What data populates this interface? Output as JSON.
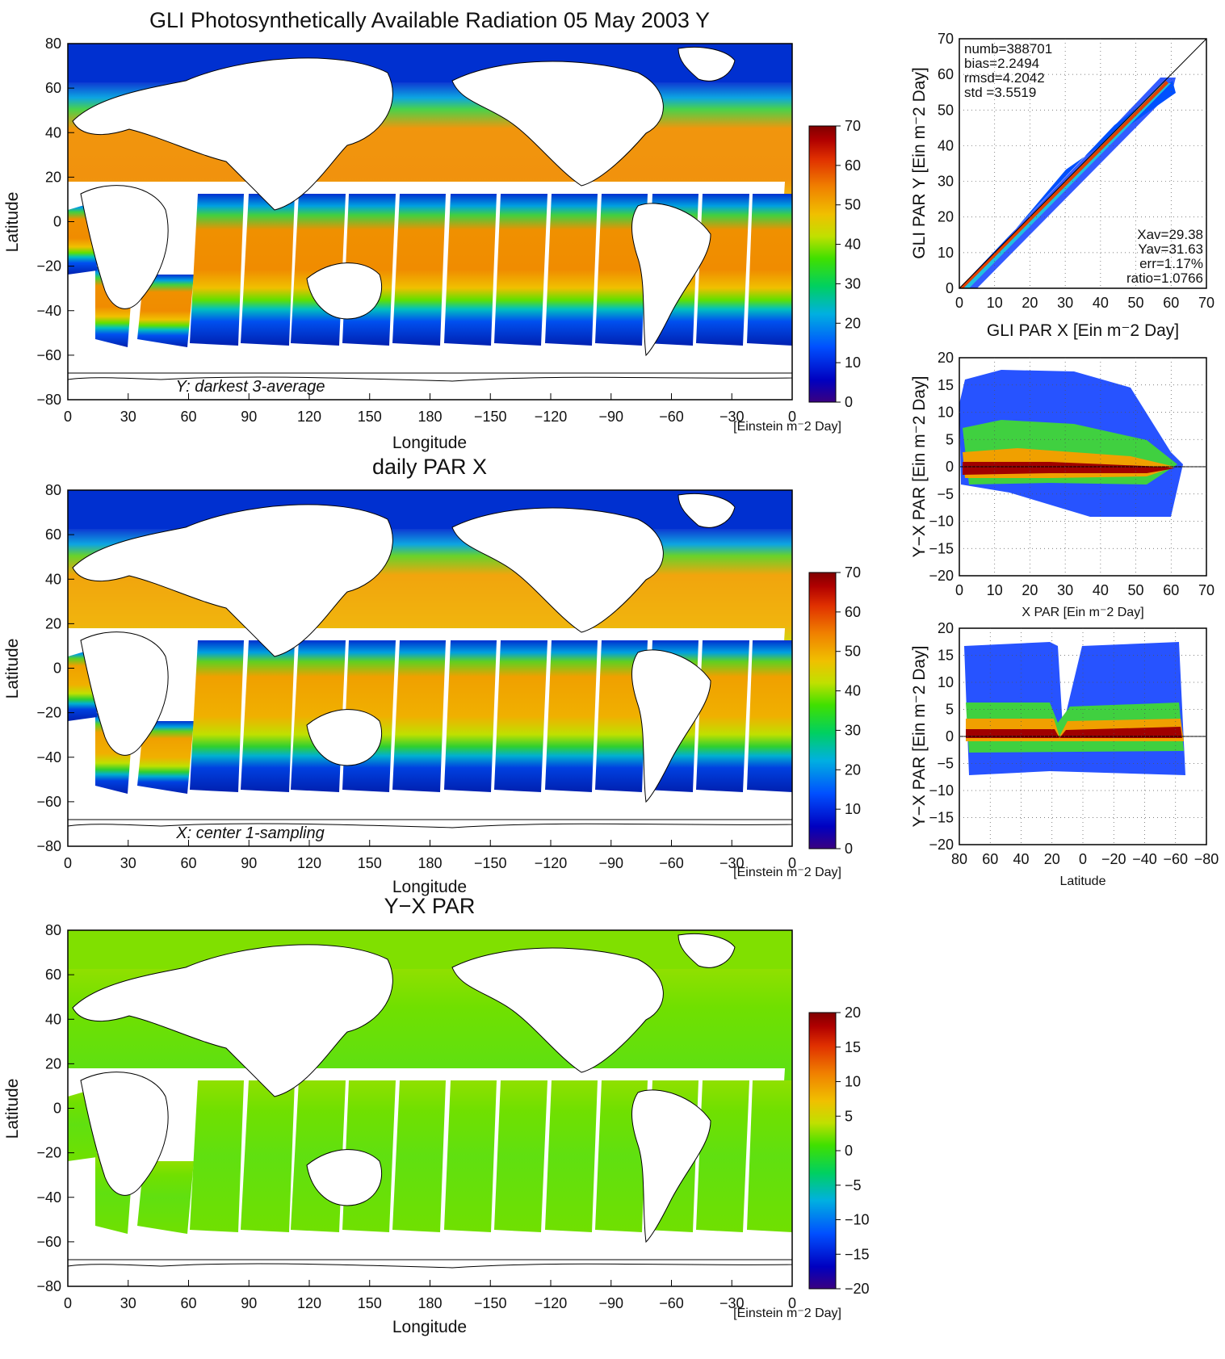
{
  "colors": {
    "par_scale": [
      "#3a0080",
      "#0000c0",
      "#0050ff",
      "#00b0e0",
      "#00d060",
      "#40e000",
      "#c0e000",
      "#f0c000",
      "#f08000",
      "#e03000",
      "#b00000",
      "#800000"
    ],
    "land": "#ffffff",
    "coast": "#000000"
  },
  "chart_data": [
    {
      "type": "heatmap",
      "title": "GLI Photosynthetically Available Radiation 05 May 2003 Y",
      "xlabel": "Longitude",
      "ylabel": "Latitude",
      "xticks": [
        "0",
        "30",
        "60",
        "90",
        "120",
        "150",
        "180",
        "−150",
        "−120",
        "−90",
        "−60",
        "−30",
        "0"
      ],
      "yticks": [
        "80",
        "60",
        "40",
        "20",
        "0",
        "−20",
        "−40",
        "−60",
        "−80"
      ],
      "annotation": "Y: darkest 3-average",
      "colorbar": {
        "ticks": [
          "70",
          "60",
          "50",
          "40",
          "30",
          "20",
          "10",
          "0"
        ],
        "label": "[Einstein m⁻2 Day]",
        "range": [
          0,
          70
        ]
      }
    },
    {
      "type": "heatmap",
      "title": "daily PAR X",
      "xlabel": "Longitude",
      "ylabel": "Latitude",
      "xticks": [
        "0",
        "30",
        "60",
        "90",
        "120",
        "150",
        "180",
        "−150",
        "−120",
        "−90",
        "−60",
        "−30",
        "0"
      ],
      "yticks": [
        "80",
        "60",
        "40",
        "20",
        "0",
        "−20",
        "−40",
        "−60",
        "−80"
      ],
      "annotation": "X: center 1-sampling",
      "colorbar": {
        "ticks": [
          "70",
          "60",
          "50",
          "40",
          "30",
          "20",
          "10",
          "0"
        ],
        "label": "[Einstein m⁻2 Day]",
        "range": [
          0,
          70
        ]
      }
    },
    {
      "type": "heatmap",
      "title": "Y−X PAR",
      "xlabel": "Longitude",
      "ylabel": "Latitude",
      "xticks": [
        "0",
        "30",
        "60",
        "90",
        "120",
        "150",
        "180",
        "−150",
        "−120",
        "−90",
        "−60",
        "−30",
        "0"
      ],
      "yticks": [
        "80",
        "60",
        "40",
        "20",
        "0",
        "−20",
        "−40",
        "−60",
        "−80"
      ],
      "colorbar": {
        "ticks": [
          "20",
          "15",
          "10",
          "5",
          "0",
          "−5",
          "−10",
          "−15",
          "−20"
        ],
        "label": "[Einstein m⁻2 Day]",
        "range": [
          -20,
          20
        ]
      }
    },
    {
      "type": "scatter",
      "xlabel": "GLI PAR X [Ein m⁻2 Day]",
      "ylabel": "GLI PAR Y [Ein m⁻2 Day]",
      "xlim": [
        0,
        70
      ],
      "ylim": [
        0,
        70
      ],
      "xticks": [
        "0",
        "10",
        "20",
        "30",
        "40",
        "50",
        "60",
        "70"
      ],
      "yticks": [
        "0",
        "10",
        "20",
        "30",
        "40",
        "50",
        "60",
        "70"
      ],
      "stats_left": [
        "numb=388701",
        "bias=2.2494",
        "rmsd=4.2042",
        "std =3.5519"
      ],
      "stats_right": [
        "Xav=29.38",
        "Yav=31.63",
        "err=1.17%",
        "ratio=1.0766"
      ]
    },
    {
      "type": "scatter",
      "xlabel": "X PAR [Ein m⁻2 Day]",
      "ylabel": "Y−X PAR [Ein m⁻2 Day]",
      "xlim": [
        0,
        70
      ],
      "ylim": [
        -20,
        20
      ],
      "xticks": [
        "0",
        "10",
        "20",
        "30",
        "40",
        "50",
        "60",
        "70"
      ],
      "yticks": [
        "20",
        "15",
        "10",
        "5",
        "0",
        "−5",
        "−10",
        "−15",
        "−20"
      ]
    },
    {
      "type": "scatter",
      "xlabel": "Latitude",
      "ylabel": "Y−X PAR [Ein m⁻2 Day]",
      "xlim": [
        80,
        -80
      ],
      "ylim": [
        -20,
        20
      ],
      "xticks": [
        "80",
        "60",
        "40",
        "20",
        "0",
        "−20",
        "−40",
        "−60",
        "−80"
      ],
      "yticks": [
        "20",
        "15",
        "10",
        "5",
        "0",
        "−5",
        "−10",
        "−15",
        "−20"
      ]
    }
  ]
}
